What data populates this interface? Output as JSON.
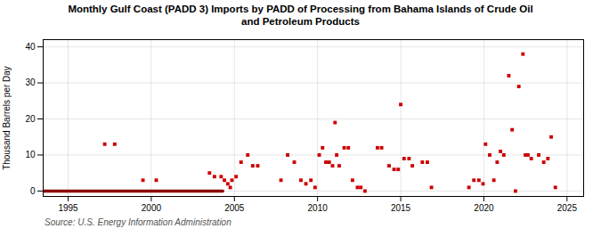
{
  "chart_data": {
    "type": "scatter",
    "title": "Monthly Gulf Coast (PADD 3) Imports by PADD of Processing from Bahama Islands of Crude Oil\nand Petroleum Products",
    "ylabel": "Thousand Barrels per Day",
    "source": "Source: U.S. Energy Information Administration",
    "series": [
      {
        "type": "scatter",
        "marker": "square",
        "color": "#cc0000",
        "x": [
          1997.2,
          1997.8,
          1999.5,
          2000.3,
          2003.5,
          2003.8,
          2004.2,
          2004.4,
          2004.6,
          2004.75,
          2004.85,
          2005.1,
          2005.4,
          2005.8,
          2006.1,
          2006.4,
          2007.8,
          2008.2,
          2008.6,
          2009.0,
          2009.3,
          2009.6,
          2009.85,
          2010.1,
          2010.3,
          2010.5,
          2010.7,
          2010.9,
          2011.05,
          2011.15,
          2011.3,
          2011.6,
          2011.85,
          2012.1,
          2012.4,
          2012.6,
          2012.85,
          2013.6,
          2013.85,
          2014.3,
          2014.6,
          2014.85,
          2015.0,
          2015.2,
          2015.5,
          2015.7,
          2016.3,
          2016.6,
          2016.85,
          2019.1,
          2019.4,
          2019.7,
          2019.95,
          2020.1,
          2020.35,
          2020.6,
          2020.8,
          2021.0,
          2021.2,
          2021.5,
          2021.7,
          2021.9,
          2022.1,
          2022.35,
          2022.5,
          2022.65,
          2022.85,
          2023.3,
          2023.6,
          2023.85,
          2024.05,
          2024.3
        ],
        "values": [
          13,
          13,
          3,
          3,
          5,
          4,
          4,
          3,
          2,
          1,
          3,
          4,
          8,
          10,
          7,
          7,
          3,
          10,
          8,
          3,
          2,
          3,
          1,
          10,
          12,
          8,
          8,
          7,
          19,
          10,
          7,
          12,
          12,
          3,
          1,
          1,
          0,
          12,
          12,
          7,
          6,
          6,
          24,
          9,
          9,
          7,
          8,
          8,
          1,
          1,
          3,
          3,
          2,
          13,
          10,
          3,
          8,
          11,
          10,
          32,
          17,
          0,
          29,
          38,
          10,
          10,
          9,
          10,
          8,
          9,
          15,
          1
        ]
      },
      {
        "type": "line",
        "color": "#8b0000",
        "x": [
          1993.5,
          2004.3
        ],
        "values": [
          0,
          0
        ]
      }
    ],
    "xlim": [
      1993.5,
      2026
    ],
    "ylim": [
      -1.5,
      42
    ],
    "xticks": [
      1995,
      2000,
      2005,
      2010,
      2015,
      2020,
      2025
    ],
    "yticks": [
      0,
      10,
      20,
      30,
      40
    ],
    "grid": true
  }
}
